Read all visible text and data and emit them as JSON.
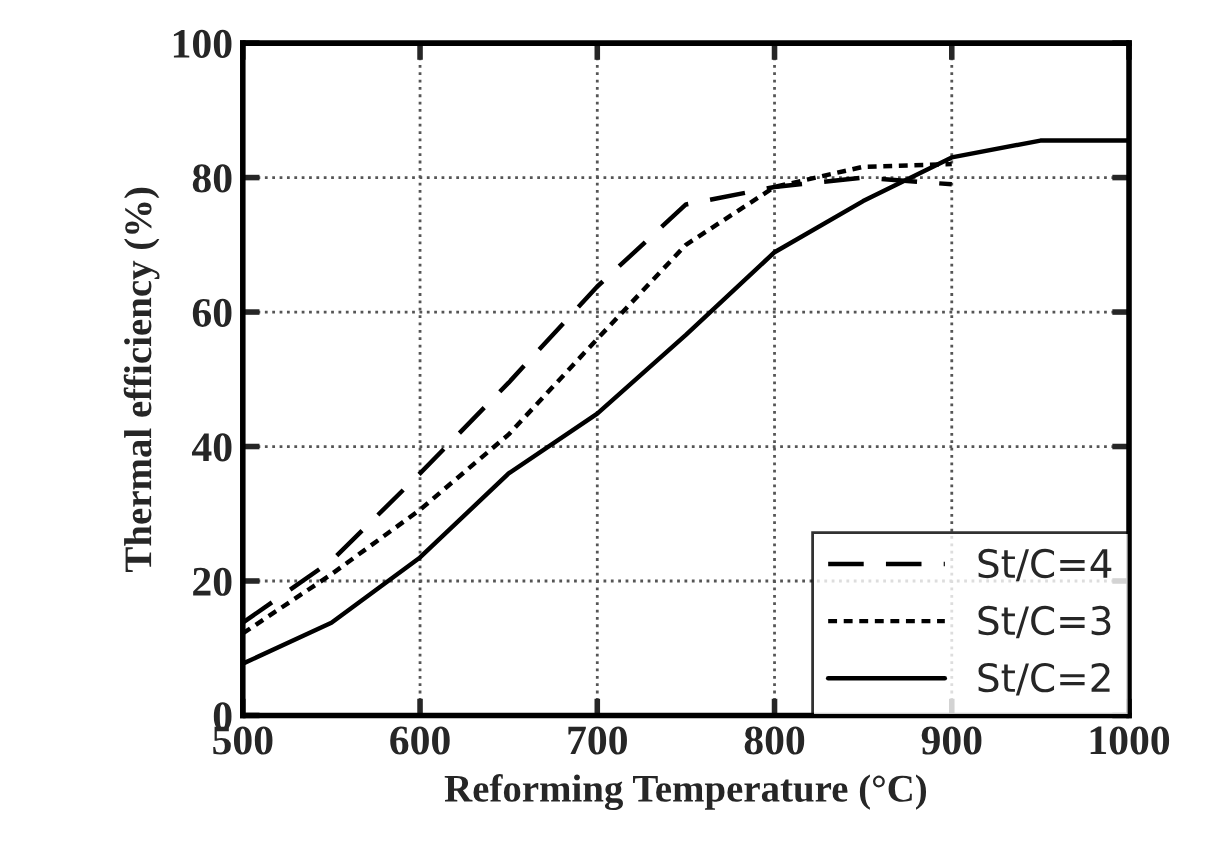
{
  "chart_data": {
    "type": "line",
    "xlabel": "Reforming Temperature (°C)",
    "ylabel": "Thermal efficiency (%)",
    "xlim": [
      500,
      1000
    ],
    "ylim": [
      0,
      100
    ],
    "xticks": [
      500,
      600,
      700,
      800,
      900,
      1000
    ],
    "yticks": [
      0,
      20,
      40,
      60,
      80,
      100
    ],
    "grid": true,
    "legend": "bottom right",
    "series": [
      {
        "name": "St/C=4",
        "color": "#000000",
        "line_style": "dashed",
        "x": [
          500,
          550,
          600,
          650,
          700,
          750,
          800,
          850,
          900
        ],
        "values": [
          13.8,
          23,
          36,
          49.5,
          63.8,
          76,
          78.6,
          80,
          79
        ]
      },
      {
        "name": "St/C=3",
        "color": "#000000",
        "line_style": "dotted",
        "x": [
          500,
          550,
          600,
          650,
          700,
          750,
          800,
          850,
          900
        ],
        "values": [
          12.2,
          21,
          30.6,
          41.8,
          56,
          70,
          78.6,
          81.6,
          82
        ]
      },
      {
        "name": "St/C=2",
        "color": "#000000",
        "line_style": "solid",
        "x": [
          500,
          550,
          600,
          650,
          700,
          750,
          800,
          850,
          900,
          950,
          1000
        ],
        "values": [
          7.7,
          13.8,
          23.5,
          36,
          44.9,
          56.6,
          68.9,
          76.5,
          83,
          85.5,
          85.5
        ]
      }
    ]
  }
}
